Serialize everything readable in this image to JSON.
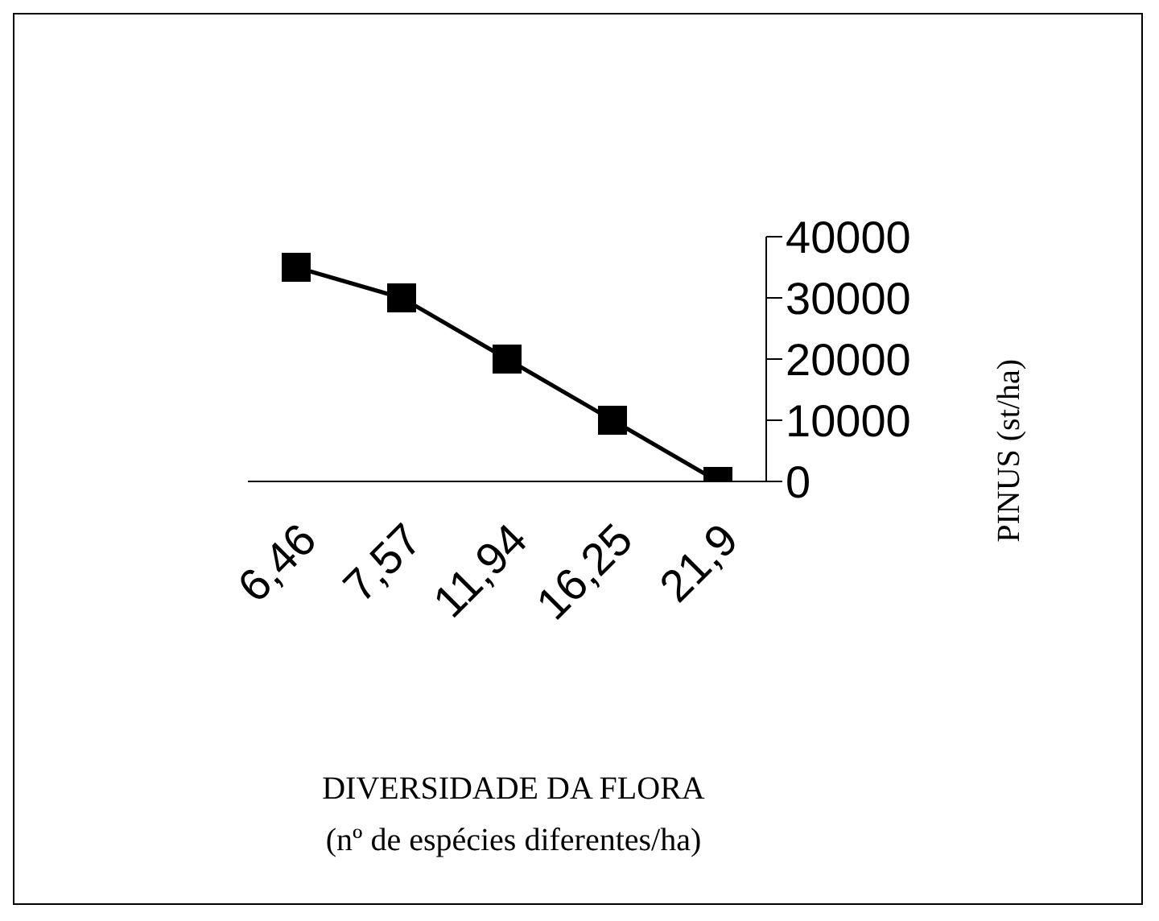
{
  "chart_data": {
    "type": "line",
    "xlabel": "DIVERSIDADE DA FLORA\n(nº de espécies diferentes/ha)",
    "ylabel": "PINUS (st/ha)",
    "categories": [
      "6,46",
      "7,57",
      "11,94",
      "16,25",
      "21,9"
    ],
    "series": [
      {
        "color": "#000000",
        "values": [
          35000,
          30000,
          20000,
          10000,
          0
        ]
      }
    ],
    "ylim": [
      0,
      40000
    ],
    "yticks": [
      0,
      10000,
      20000,
      30000,
      40000
    ],
    "marker": "square",
    "line_style": "solid",
    "grid": false,
    "legend": false
  }
}
